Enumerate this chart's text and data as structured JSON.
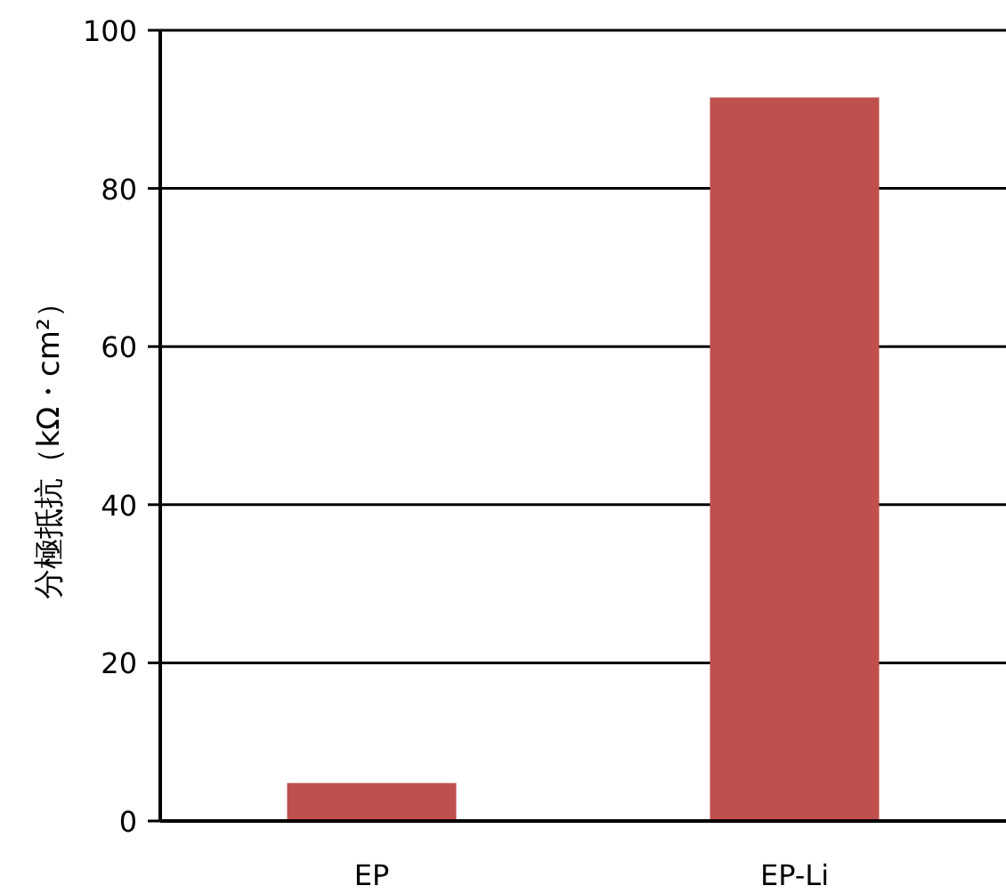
{
  "chart_data": {
    "type": "bar",
    "ylabel": "分極抵抗（kΩ・cm²）",
    "categories": [
      "EP",
      "EP-Li"
    ],
    "values": [
      4.8,
      91.5
    ],
    "color": "#c0504d",
    "ylim": [
      0,
      100
    ],
    "yticks": [
      0,
      20,
      40,
      60,
      80,
      100
    ],
    "grid": "y"
  }
}
